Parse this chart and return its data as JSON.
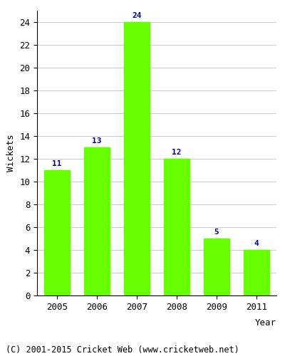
{
  "years": [
    "2005",
    "2006",
    "2007",
    "2008",
    "2009",
    "2011"
  ],
  "values": [
    11,
    13,
    24,
    12,
    5,
    4
  ],
  "bar_color": "#66FF00",
  "bar_edge_color": "#66FF00",
  "label_color": "#00008B",
  "xlabel": "Year",
  "ylabel": "Wickets",
  "ylim": [
    0,
    25
  ],
  "yticks": [
    0,
    2,
    4,
    6,
    8,
    10,
    12,
    14,
    16,
    18,
    20,
    22,
    24
  ],
  "grid_color": "#cccccc",
  "background_color": "#ffffff",
  "footer": "(C) 2001-2015 Cricket Web (www.cricketweb.net)",
  "label_fontsize": 8,
  "axis_fontsize": 9,
  "footer_fontsize": 8.5
}
